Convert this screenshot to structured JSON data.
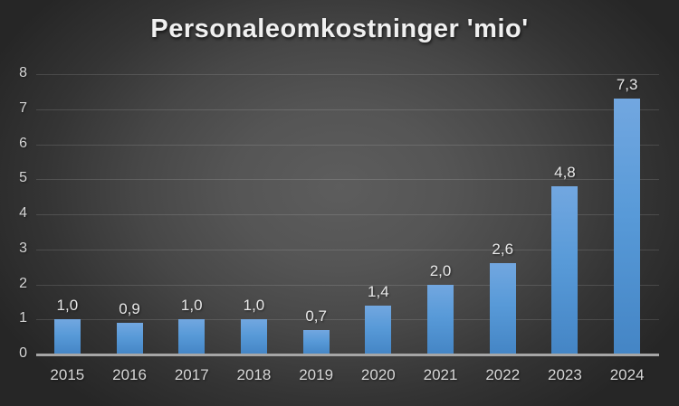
{
  "chart_data": {
    "type": "bar",
    "title": "Personaleomkostninger 'mio'",
    "categories": [
      "2015",
      "2016",
      "2017",
      "2018",
      "2019",
      "2020",
      "2021",
      "2022",
      "2023",
      "2024"
    ],
    "values": [
      1.0,
      0.9,
      1.0,
      1.0,
      0.7,
      1.4,
      2.0,
      2.6,
      4.8,
      7.3
    ],
    "value_labels": [
      "1,0",
      "0,9",
      "1,0",
      "1,0",
      "0,7",
      "1,4",
      "2,0",
      "2,6",
      "4,8",
      "7,3"
    ],
    "xlabel": "",
    "ylabel": "",
    "ylim": [
      0,
      8
    ],
    "yticks": [
      "0",
      "1",
      "2",
      "3",
      "4",
      "5",
      "6",
      "7",
      "8"
    ],
    "grid": true,
    "legend": false,
    "decimal_separator": ","
  },
  "colors": {
    "bar_top": "#72a7e0",
    "bar_mid": "#589ad8",
    "bar_bottom": "#4485c5",
    "background_center": "#5d5d5d",
    "background_edge": "#262626",
    "gridline": "rgba(255,255,255,0.13)",
    "axis_line": "#a6a6a6",
    "tick_label": "#d6d6d6",
    "value_label": "#e8e8e8",
    "title": "#f0f0f0"
  }
}
